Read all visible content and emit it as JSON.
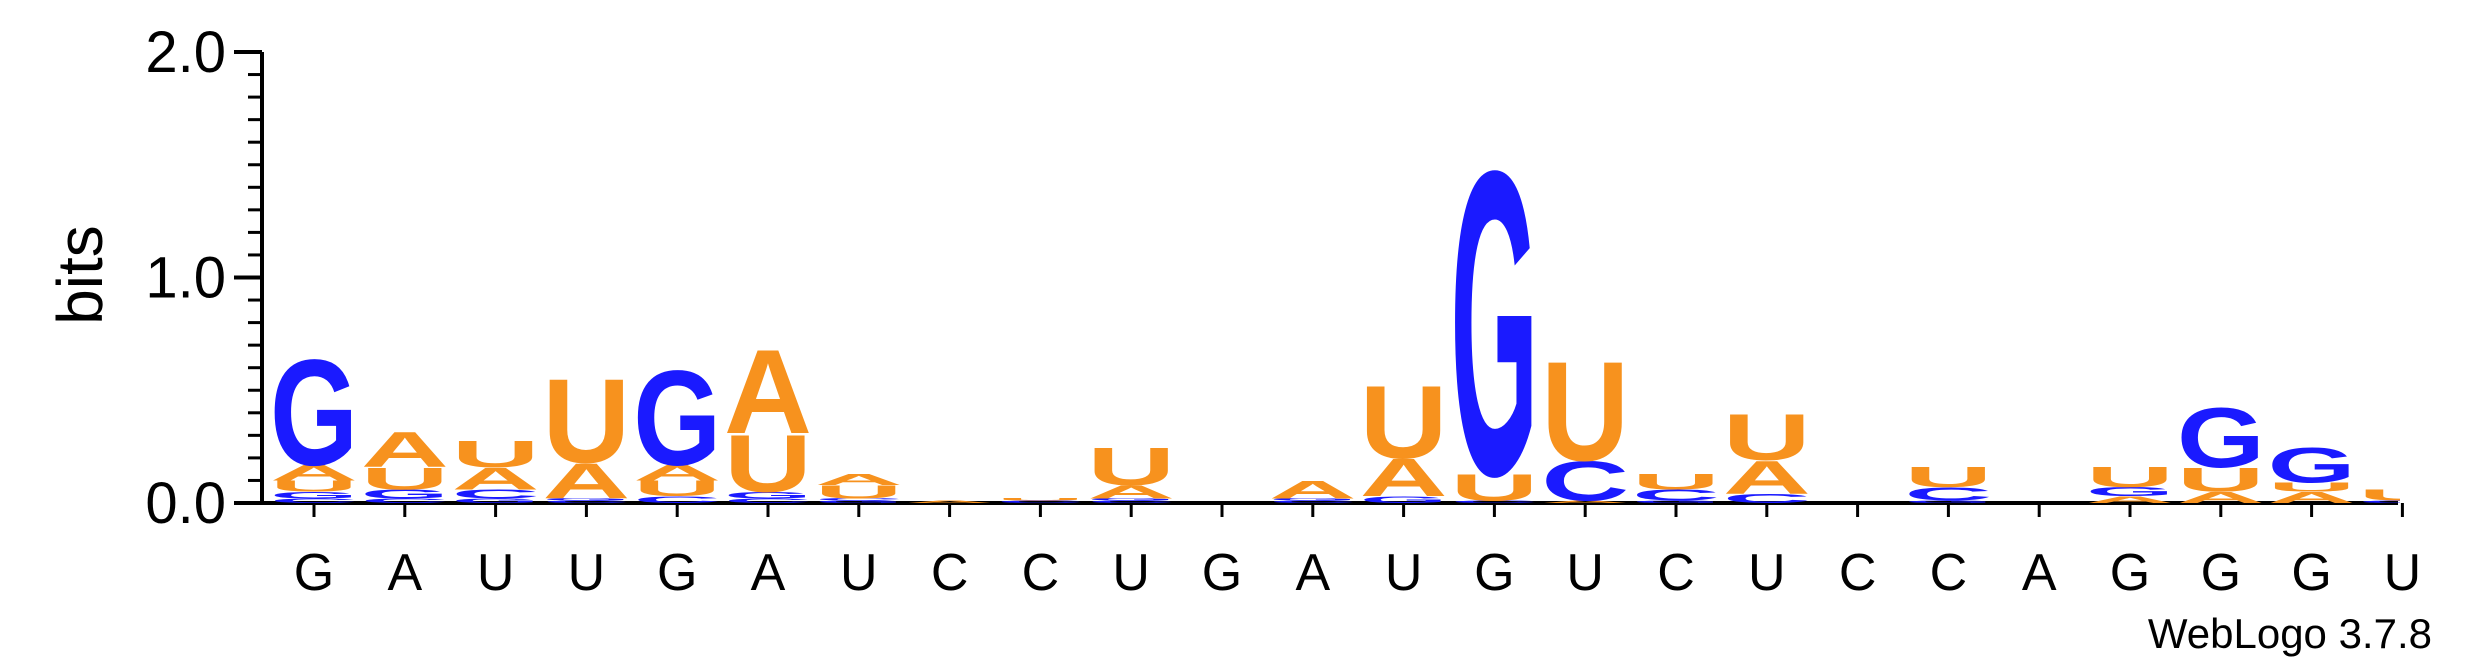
{
  "chart_data": {
    "type": "sequence-logo",
    "ylabel": "bits",
    "ylim": [
      0,
      2.0
    ],
    "yticks": [
      "0.0",
      "1.0",
      "2.0"
    ],
    "colors": {
      "A": "#f7921e",
      "U": "#f7921e",
      "G": "#1a1aff",
      "C": "#1a1aff"
    },
    "footer": "WebLogo 3.7.8",
    "positions": [
      {
        "consensus": "G",
        "stack": [
          [
            "C",
            0.02
          ],
          [
            "G",
            0.03
          ],
          [
            "U",
            0.05
          ],
          [
            "A",
            0.07
          ],
          [
            "G",
            0.48
          ]
        ]
      },
      {
        "consensus": "A",
        "stack": [
          [
            "C",
            0.02
          ],
          [
            "G",
            0.04
          ],
          [
            "U",
            0.1
          ],
          [
            "A",
            0.16
          ]
        ]
      },
      {
        "consensus": "U",
        "stack": [
          [
            "G",
            0.02
          ],
          [
            "C",
            0.04
          ],
          [
            "A",
            0.1
          ],
          [
            "U",
            0.12
          ]
        ]
      },
      {
        "consensus": "U",
        "stack": [
          [
            "C",
            0.01
          ],
          [
            "G",
            0.01
          ],
          [
            "A",
            0.16
          ],
          [
            "U",
            0.38
          ]
        ]
      },
      {
        "consensus": "G",
        "stack": [
          [
            "C",
            0.03
          ],
          [
            "U",
            0.07
          ],
          [
            "A",
            0.07
          ],
          [
            "G",
            0.43
          ]
        ]
      },
      {
        "consensus": "A",
        "stack": [
          [
            "C",
            0.02
          ],
          [
            "G",
            0.03
          ],
          [
            "U",
            0.26
          ],
          [
            "A",
            0.38
          ]
        ]
      },
      {
        "consensus": "U",
        "stack": [
          [
            "G",
            0.01
          ],
          [
            "C",
            0.01
          ],
          [
            "U",
            0.06
          ],
          [
            "A",
            0.05
          ]
        ]
      },
      {
        "consensus": "C",
        "stack": [
          [
            "A",
            0.01
          ]
        ]
      },
      {
        "consensus": "C",
        "stack": [
          [
            "C",
            0.01
          ],
          [
            "U",
            0.01
          ]
        ]
      },
      {
        "consensus": "U",
        "stack": [
          [
            "C",
            0.01
          ],
          [
            "G",
            0.01
          ],
          [
            "A",
            0.06
          ],
          [
            "U",
            0.17
          ]
        ]
      },
      {
        "consensus": "G",
        "stack": []
      },
      {
        "consensus": "A",
        "stack": [
          [
            "C",
            0.01
          ],
          [
            "G",
            0.01
          ],
          [
            "A",
            0.08
          ]
        ]
      },
      {
        "consensus": "U",
        "stack": [
          [
            "G",
            0.03
          ],
          [
            "A",
            0.17
          ],
          [
            "U",
            0.33
          ]
        ]
      },
      {
        "consensus": "G",
        "stack": [
          [
            "C",
            0.01
          ],
          [
            "U",
            0.12
          ],
          [
            "G",
            1.38
          ]
        ]
      },
      {
        "consensus": "U",
        "stack": [
          [
            "A",
            0.01
          ],
          [
            "C",
            0.18
          ],
          [
            "U",
            0.45
          ]
        ]
      },
      {
        "consensus": "C",
        "stack": [
          [
            "G",
            0.01
          ],
          [
            "C",
            0.05
          ],
          [
            "U",
            0.07
          ]
        ]
      },
      {
        "consensus": "U",
        "stack": [
          [
            "C",
            0.04
          ],
          [
            "A",
            0.15
          ],
          [
            "U",
            0.21
          ]
        ]
      },
      {
        "consensus": "C",
        "stack": []
      },
      {
        "consensus": "C",
        "stack": [
          [
            "G",
            0.01
          ],
          [
            "C",
            0.06
          ],
          [
            "U",
            0.09
          ]
        ]
      },
      {
        "consensus": "A",
        "stack": []
      },
      {
        "consensus": "G",
        "stack": [
          [
            "A",
            0.03
          ],
          [
            "G",
            0.04
          ],
          [
            "U",
            0.09
          ]
        ]
      },
      {
        "consensus": "G",
        "stack": [
          [
            "A",
            0.05
          ],
          [
            "U",
            0.11
          ],
          [
            "G",
            0.27
          ]
        ]
      },
      {
        "consensus": "G",
        "stack": [
          [
            "A",
            0.05
          ],
          [
            "U",
            0.04
          ],
          [
            "G",
            0.16
          ]
        ]
      },
      {
        "consensus": "U",
        "stack": [
          [
            "G",
            0.01
          ],
          [
            "U",
            0.05
          ]
        ]
      }
    ]
  }
}
